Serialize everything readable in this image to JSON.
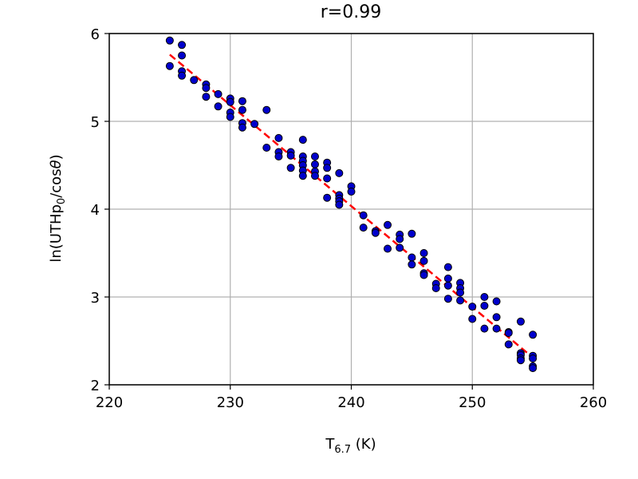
{
  "chart_data": {
    "type": "scatter",
    "title": "r=0.99",
    "xlabel": {
      "main": "T",
      "sub": "6.7",
      "suffix": " (K)"
    },
    "ylabel": {
      "prefix": "ln(UTHp",
      "sub": "0",
      "suffix": "/cos",
      "theta": "θ",
      "end": ")"
    },
    "xlim": [
      220,
      260
    ],
    "ylim": [
      2,
      6
    ],
    "xticks": [
      "220",
      "230",
      "240",
      "250",
      "260"
    ],
    "yticks": [
      "2",
      "3",
      "4",
      "5",
      "6"
    ],
    "grid": true,
    "point_color": "#0000cc",
    "point_edge_color": "#000000",
    "fit_color": "#ff0000",
    "fit_line": {
      "x": [
        225,
        255
      ],
      "y": [
        5.76,
        2.31
      ]
    },
    "points": [
      [
        225,
        5.92
      ],
      [
        225,
        5.63
      ],
      [
        226,
        5.87
      ],
      [
        226,
        5.75
      ],
      [
        226,
        5.57
      ],
      [
        226,
        5.52
      ],
      [
        227,
        5.47
      ],
      [
        228,
        5.42
      ],
      [
        228,
        5.38
      ],
      [
        228,
        5.28
      ],
      [
        229,
        5.31
      ],
      [
        229,
        5.17
      ],
      [
        230,
        5.26
      ],
      [
        230,
        5.22
      ],
      [
        230,
        5.1
      ],
      [
        230,
        5.05
      ],
      [
        231,
        5.23
      ],
      [
        231,
        5.13
      ],
      [
        231,
        4.98
      ],
      [
        231,
        4.93
      ],
      [
        232,
        4.97
      ],
      [
        233,
        5.13
      ],
      [
        233,
        4.7
      ],
      [
        234,
        4.81
      ],
      [
        234,
        4.65
      ],
      [
        234,
        4.6
      ],
      [
        235,
        4.65
      ],
      [
        235,
        4.61
      ],
      [
        235,
        4.47
      ],
      [
        236,
        4.79
      ],
      [
        236,
        4.6
      ],
      [
        236,
        4.55
      ],
      [
        236,
        4.5
      ],
      [
        236,
        4.44
      ],
      [
        236,
        4.38
      ],
      [
        237,
        4.6
      ],
      [
        237,
        4.51
      ],
      [
        237,
        4.43
      ],
      [
        237,
        4.38
      ],
      [
        238,
        4.53
      ],
      [
        238,
        4.47
      ],
      [
        238,
        4.35
      ],
      [
        238,
        4.13
      ],
      [
        239,
        4.41
      ],
      [
        239,
        4.16
      ],
      [
        239,
        4.12
      ],
      [
        239,
        4.09
      ],
      [
        239,
        4.05
      ],
      [
        240,
        4.26
      ],
      [
        240,
        4.2
      ],
      [
        241,
        3.93
      ],
      [
        241,
        3.79
      ],
      [
        242,
        3.75
      ],
      [
        242,
        3.73
      ],
      [
        243,
        3.82
      ],
      [
        243,
        3.55
      ],
      [
        244,
        3.71
      ],
      [
        244,
        3.66
      ],
      [
        244,
        3.56
      ],
      [
        245,
        3.72
      ],
      [
        245,
        3.45
      ],
      [
        245,
        3.37
      ],
      [
        246,
        3.5
      ],
      [
        246,
        3.41
      ],
      [
        246,
        3.27
      ],
      [
        246,
        3.25
      ],
      [
        247,
        3.15
      ],
      [
        247,
        3.1
      ],
      [
        248,
        3.34
      ],
      [
        248,
        3.21
      ],
      [
        248,
        3.13
      ],
      [
        248,
        2.98
      ],
      [
        249,
        3.16
      ],
      [
        249,
        3.1
      ],
      [
        249,
        3.05
      ],
      [
        249,
        2.96
      ],
      [
        250,
        2.89
      ],
      [
        250,
        2.75
      ],
      [
        251,
        3.0
      ],
      [
        251,
        2.9
      ],
      [
        251,
        2.64
      ],
      [
        252,
        2.95
      ],
      [
        252,
        2.77
      ],
      [
        252,
        2.64
      ],
      [
        253,
        2.6
      ],
      [
        253,
        2.59
      ],
      [
        253,
        2.46
      ],
      [
        254,
        2.72
      ],
      [
        254,
        2.36
      ],
      [
        254,
        2.34
      ],
      [
        254,
        2.3
      ],
      [
        254,
        2.28
      ],
      [
        255,
        2.57
      ],
      [
        255,
        2.33
      ],
      [
        255,
        2.3
      ],
      [
        255,
        2.21
      ],
      [
        255,
        2.19
      ]
    ]
  }
}
